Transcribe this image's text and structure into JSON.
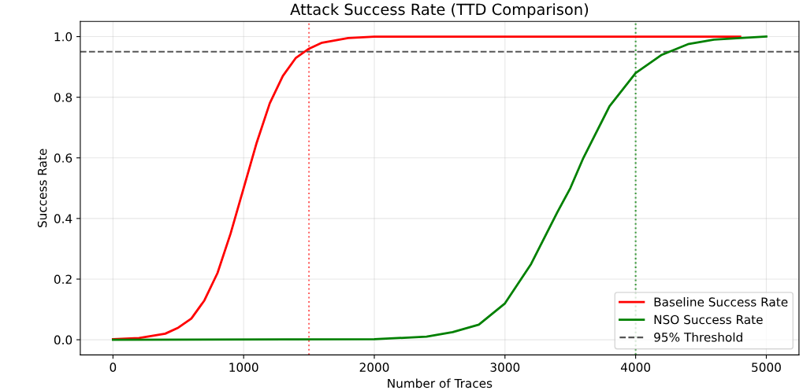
{
  "chart_data": {
    "type": "line",
    "title": "Attack Success Rate (TTD Comparison)",
    "xlabel": "Number of Traces",
    "ylabel": "Success Rate",
    "xlim": [
      -250,
      5250
    ],
    "xticks": [
      0,
      1000,
      2000,
      3000,
      4000,
      5000
    ],
    "ylim": [
      -0.05,
      1.05
    ],
    "yticks": [
      {
        "value": 0,
        "label": "0.0"
      },
      {
        "value": 0.2,
        "label": "0.2"
      },
      {
        "value": 0.4,
        "label": "0.4"
      },
      {
        "value": 0.6,
        "label": "0.6"
      },
      {
        "value": 0.8,
        "label": "0.8"
      },
      {
        "value": 1,
        "label": "1.0"
      }
    ],
    "grid": true,
    "legend": "bottom right",
    "line_style": "solid",
    "marker": "none",
    "series": [
      {
        "name": "Baseline Success Rate",
        "color": "#ff0000",
        "x": [
          0,
          200,
          400,
          500,
          600,
          700,
          800,
          900,
          1000,
          1100,
          1200,
          1300,
          1400,
          1500,
          1600,
          1800,
          2000,
          3000,
          4800
        ],
        "values": [
          0.002,
          0.006,
          0.02,
          0.04,
          0.07,
          0.13,
          0.22,
          0.35,
          0.5,
          0.65,
          0.78,
          0.87,
          0.93,
          0.96,
          0.98,
          0.995,
          1.0,
          1.0,
          1.0
        ]
      },
      {
        "name": "NSO Success Rate",
        "color": "#008000",
        "x": [
          0,
          2000,
          2400,
          2600,
          2800,
          3000,
          3200,
          3400,
          3500,
          3600,
          3800,
          4000,
          4200,
          4400,
          4600,
          4800,
          5000
        ],
        "values": [
          0,
          0.002,
          0.01,
          0.025,
          0.05,
          0.12,
          0.25,
          0.42,
          0.5,
          0.6,
          0.77,
          0.88,
          0.94,
          0.975,
          0.99,
          0.995,
          1.0
        ]
      }
    ],
    "ref_lines": [
      {
        "axis": "y",
        "value": 0.95,
        "label": "95% Threshold",
        "color": "#555555",
        "line_style": "dashed"
      },
      {
        "axis": "x",
        "value": 1500,
        "color": "#ff6666",
        "line_style": "dotted"
      },
      {
        "axis": "x",
        "value": 4000,
        "color": "#3c9a3c",
        "line_style": "dotted"
      }
    ]
  }
}
